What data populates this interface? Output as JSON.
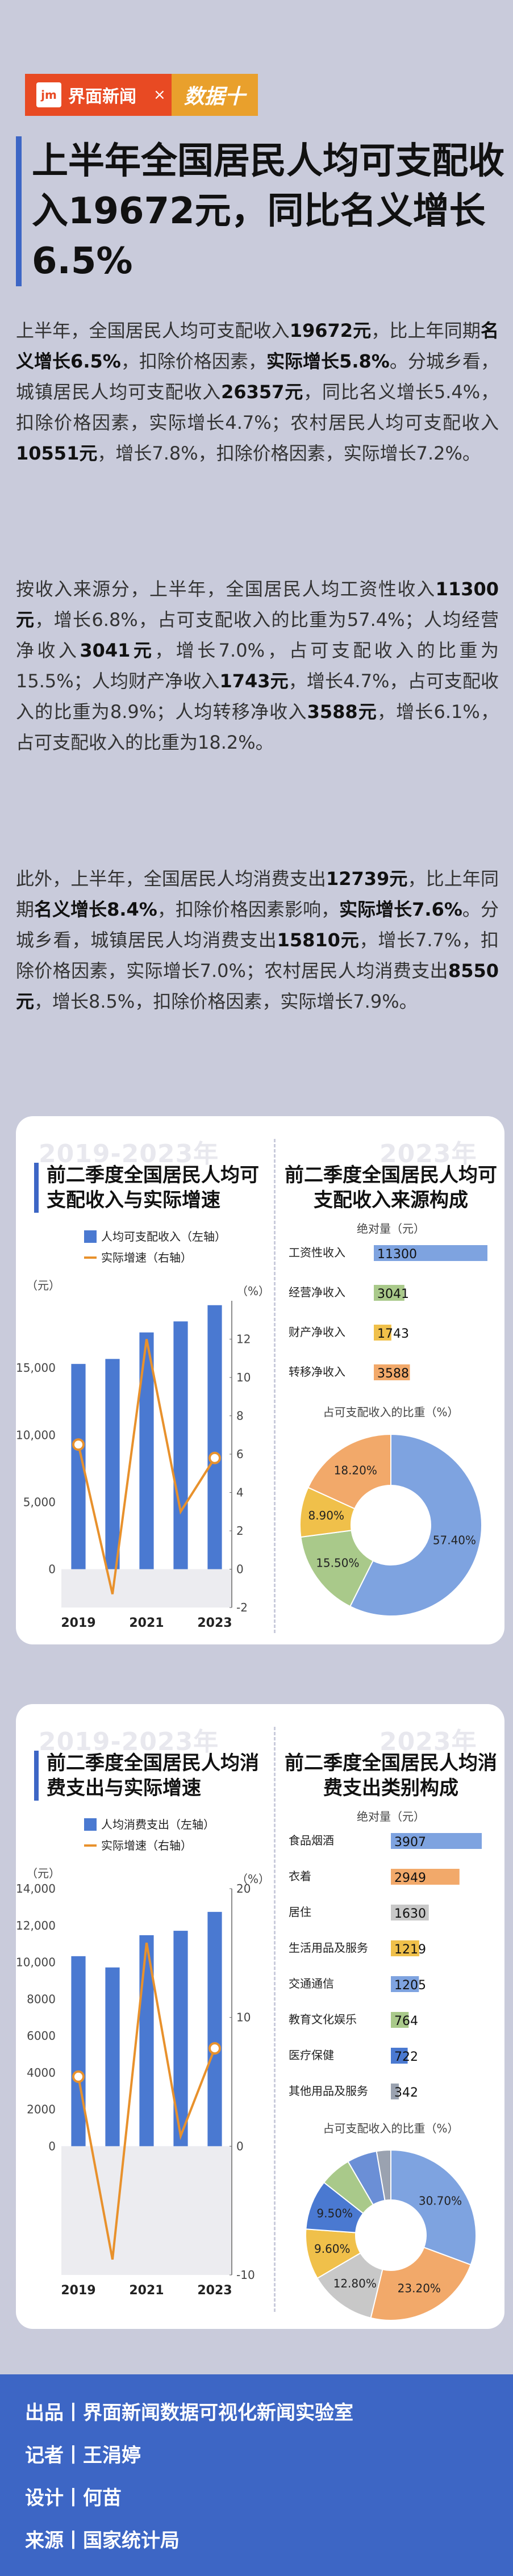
{
  "brand": {
    "logo_text": "jm",
    "name": "界面新闻",
    "cross": "×",
    "partner": "数据十"
  },
  "headline": "上半年全国居民人均可支配收入19672元，同比名义增长6.5%",
  "paragraphs": [
    [
      {
        "t": "上半年，全国居民人均可支配收入",
        "b": false
      },
      {
        "t": "19672元",
        "b": true
      },
      {
        "t": "，比上年同期",
        "b": false
      },
      {
        "t": "名义增长6.5%",
        "b": true
      },
      {
        "t": "，扣除价格因素，",
        "b": false
      },
      {
        "t": "实际增长5.8%",
        "b": true
      },
      {
        "t": "。分城乡看，城镇居民人均可支配收入",
        "b": false
      },
      {
        "t": "26357元",
        "b": true
      },
      {
        "t": "，同比名义增长5.4%，扣除价格因素，实际增长4.7%；农村居民人均可支配收入",
        "b": false
      },
      {
        "t": "10551元",
        "b": true
      },
      {
        "t": "，增长7.8%，扣除价格因素，实际增长7.2%。",
        "b": false
      }
    ],
    [
      {
        "t": "按收入来源分，上半年，全国居民人均工资性收入",
        "b": false
      },
      {
        "t": "11300元",
        "b": true
      },
      {
        "t": "，增长6.8%，占可支配收入的比重为57.4%；人均经营净收入",
        "b": false
      },
      {
        "t": "3041元",
        "b": true
      },
      {
        "t": "，增长7.0%，占可支配收入的比重为15.5%；人均财产净收入",
        "b": false
      },
      {
        "t": "1743元",
        "b": true
      },
      {
        "t": "，增长4.7%，占可支配收入的比重为8.9%；人均转移净收入",
        "b": false
      },
      {
        "t": "3588元",
        "b": true
      },
      {
        "t": "，增长6.1%，占可支配收入的比重为18.2%。",
        "b": false
      }
    ],
    [
      {
        "t": "此外，上半年，全国居民人均消费支出",
        "b": false
      },
      {
        "t": "12739元",
        "b": true
      },
      {
        "t": "，比上年同期",
        "b": false
      },
      {
        "t": "名义增长8.4%",
        "b": true
      },
      {
        "t": "，扣除价格因素影响，",
        "b": false
      },
      {
        "t": "实际增长7.6%",
        "b": true
      },
      {
        "t": "。分城乡看，城镇居民人均消费支出",
        "b": false
      },
      {
        "t": "15810元",
        "b": true
      },
      {
        "t": "，增长7.7%，扣除价格因素，实际增长7.0%；农村居民人均消费支出",
        "b": false
      },
      {
        "t": "8550元",
        "b": true
      },
      {
        "t": "，增长8.5%，扣除价格因素，实际增长7.9%。",
        "b": false
      }
    ]
  ],
  "panel1": {
    "watermark_left": "2019-2023年",
    "watermark_right": "2023年",
    "left_title": "前二季度全国居民人均可支配收入与实际增速",
    "right_title": "前二季度全国居民人均可支配收入来源构成"
  },
  "panel2": {
    "watermark_left": "2019-2023年",
    "watermark_right": "2023年",
    "left_title": "前二季度全国居民人均消费支出与实际增速",
    "right_title": "前二季度全国居民人均消费支出类别构成"
  },
  "chart_data": [
    {
      "type": "bar",
      "title": "前二季度全国居民人均可支配收入与实际增速",
      "categories": [
        "2019",
        "2020",
        "2021",
        "2022",
        "2023"
      ],
      "x_tick_labels": [
        "2019",
        "",
        "2021",
        "",
        "2023"
      ],
      "series": [
        {
          "name": "人均可支配收入（左轴）",
          "type": "bar",
          "axis": "left",
          "values": [
            15294,
            15666,
            17642,
            18463,
            19672
          ]
        },
        {
          "name": "实际增速（右轴）",
          "type": "line",
          "axis": "right",
          "values": [
            6.5,
            -1.3,
            12.0,
            3.0,
            5.8
          ]
        }
      ],
      "left_unit": "（元）",
      "right_unit": "（%）",
      "ylim_left": [
        0,
        20000
      ],
      "left_ticks": [
        "0",
        "5,000",
        "10,000",
        "15,000"
      ],
      "ylim_right": [
        -2,
        14
      ],
      "right_ticks": [
        "-2",
        "0",
        "2",
        "4",
        "6",
        "8",
        "10",
        "12"
      ],
      "colors": {
        "bar": "#4a79d1",
        "line": "#e8912c"
      }
    },
    {
      "type": "bar",
      "title": "前二季度全国居民人均可支配收入来源构成",
      "axis_label": "绝对量（元）",
      "categories": [
        "工资性收入",
        "经营净收入",
        "财产净收入",
        "转移净收入"
      ],
      "values": [
        11300,
        3041,
        1743,
        3588
      ],
      "colors": [
        "#7ea3e0",
        "#a9c98a",
        "#f0c04a",
        "#f2a96a"
      ]
    },
    {
      "type": "pie",
      "title": "占可支配收入的比重（%）",
      "labels": [
        "工资性收入",
        "经营净收入",
        "财产净收入",
        "转移净收入"
      ],
      "values": [
        57.4,
        15.5,
        8.9,
        18.2
      ],
      "value_labels": [
        "57.40%",
        "15.50%",
        "8.90%",
        "18.20%"
      ],
      "colors": [
        "#7ea3e0",
        "#a9c98a",
        "#f0c04a",
        "#f2a96a"
      ]
    },
    {
      "type": "bar",
      "title": "前二季度全国居民人均消费支出与实际增速",
      "categories": [
        "2019",
        "2020",
        "2021",
        "2022",
        "2023"
      ],
      "x_tick_labels": [
        "2019",
        "",
        "2021",
        "",
        "2023"
      ],
      "series": [
        {
          "name": "人均消费支出（左轴）",
          "type": "bar",
          "axis": "left",
          "values": [
            10330,
            9718,
            11471,
            11712,
            12739
          ]
        },
        {
          "name": "实际增速（右轴）",
          "type": "line",
          "axis": "right",
          "values": [
            5.4,
            -8.8,
            15.8,
            0.8,
            7.6
          ]
        }
      ],
      "left_unit": "（元）",
      "right_unit": "（%）",
      "ylim_left": [
        0,
        14000
      ],
      "left_ticks": [
        "0",
        "2000",
        "4000",
        "6000",
        "8000",
        "10,000",
        "12,000",
        "14,000"
      ],
      "ylim_right": [
        -10,
        20
      ],
      "right_ticks": [
        "-10",
        "0",
        "10",
        "20"
      ],
      "colors": {
        "bar": "#4a79d1",
        "line": "#e8912c"
      }
    },
    {
      "type": "bar",
      "title": "前二季度全国居民人均消费支出类别构成",
      "axis_label": "绝对量（元）",
      "categories": [
        "食品烟酒",
        "衣着",
        "居住",
        "生活用品及服务",
        "交通通信",
        "教育文化娱乐",
        "医疗保健",
        "其他用品及服务"
      ],
      "values": [
        3907,
        2949,
        1630,
        1219,
        1205,
        764,
        722,
        342
      ],
      "colors": [
        "#7ea3e0",
        "#f2a96a",
        "#c8c8c8",
        "#f0c04a",
        "#7ea3e0",
        "#a9c98a",
        "#4a79d1",
        "#9aa2b0"
      ]
    },
    {
      "type": "pie",
      "title": "占可支配收入的比重（%）",
      "labels": [
        "食品烟酒",
        "衣着",
        "居住",
        "生活用品及服务",
        "交通通信",
        "教育文化娱乐",
        "医疗保健",
        "其他用品及服务"
      ],
      "values": [
        30.7,
        23.2,
        12.8,
        9.6,
        9.5,
        6.0,
        5.7,
        2.7
      ],
      "value_labels": [
        "30.70%",
        "23.20%",
        "12.80%",
        "9.60%",
        "9.50%",
        "",
        "",
        ""
      ],
      "colors": [
        "#7ea3e0",
        "#f2a96a",
        "#c8c8c8",
        "#f0c04a",
        "#4a79d1",
        "#a9c98a",
        "#6b8fd6",
        "#9aa2b0"
      ]
    }
  ],
  "footer": [
    "出品丨界面新闻数据可视化新闻实验室",
    "记者丨王涓婷",
    "设计丨何苗",
    "来源丨国家统计局"
  ]
}
